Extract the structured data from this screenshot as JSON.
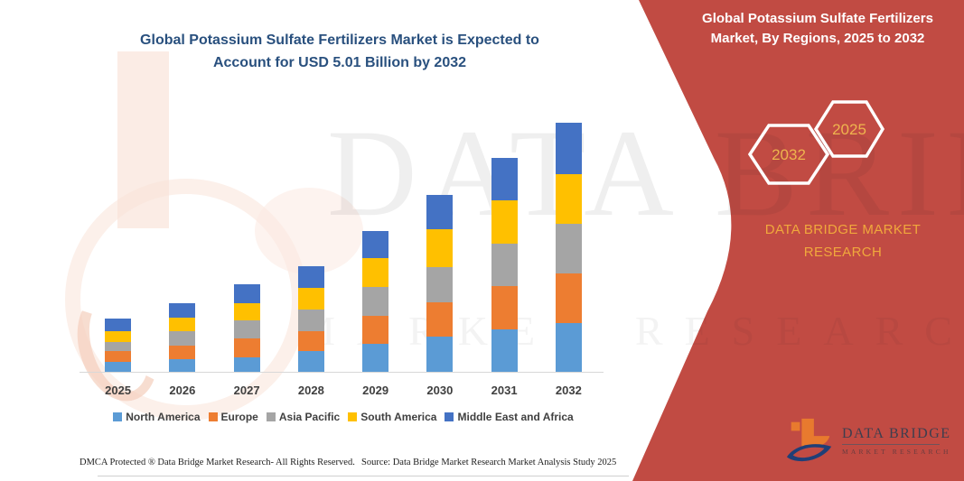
{
  "colors": {
    "panel_red": "#c14b43",
    "title_blue": "#29507e",
    "badge_gold": "#eeb44e",
    "brand_gold": "#f0a83c",
    "axis_gray": "#d8d8d8"
  },
  "header": {
    "left_title_line1": "Global Potassium Sulfate Fertilizers Market is Expected to",
    "left_title_line2": "Account for USD 5.01 Billion by 2032",
    "right_title_line1": "Global Potassium Sulfate Fertilizers",
    "right_title_line2": "Market, By Regions, 2025 to 2032"
  },
  "badges": {
    "back_label": "2032",
    "front_label": "2025"
  },
  "brand_text": "DATA BRIDGE MARKET RESEARCH",
  "watermark": {
    "line1": "DATA BRIDGE",
    "line2": "MARKET RESEARCH"
  },
  "chart_data": {
    "type": "bar",
    "stacked": true,
    "title": "Global Potassium Sulfate Fertilizers Market is Expected to Account for USD 5.01 Billion by 2032",
    "unit": "USD Billion",
    "categories": [
      "2025",
      "2026",
      "2027",
      "2028",
      "2029",
      "2030",
      "2031",
      "2032"
    ],
    "series": [
      {
        "name": "North America",
        "color": "#5B9BD5",
        "values": [
          0.2,
          0.25,
          0.3,
          0.42,
          0.56,
          0.71,
          0.86,
          0.99
        ]
      },
      {
        "name": "Europe",
        "color": "#ED7D31",
        "values": [
          0.22,
          0.28,
          0.38,
          0.4,
          0.57,
          0.69,
          0.86,
          0.99
        ]
      },
      {
        "name": "Asia Pacific",
        "color": "#A5A5A5",
        "values": [
          0.18,
          0.29,
          0.36,
          0.43,
          0.58,
          0.71,
          0.86,
          1.01
        ]
      },
      {
        "name": "South America",
        "color": "#FFC000",
        "values": [
          0.22,
          0.27,
          0.35,
          0.45,
          0.58,
          0.76,
          0.87,
          1.0
        ]
      },
      {
        "name": "Middle East and Africa",
        "color": "#4472C4",
        "values": [
          0.25,
          0.29,
          0.38,
          0.42,
          0.55,
          0.7,
          0.86,
          1.02
        ]
      }
    ],
    "totals_estimated": [
      1.07,
      1.38,
      1.77,
      2.12,
      2.84,
      3.57,
      4.31,
      5.01
    ],
    "ylim": [
      0,
      5.2
    ],
    "y_axis_visible": false,
    "grid": false,
    "legend_position": "bottom",
    "annotation": "2032 total = USD 5.01 Billion (stated in title)"
  },
  "footer": {
    "dmca": "DMCA Protected ® Data Bridge Market Research- All Rights Reserved.",
    "source": "Source: Data Bridge Market Research Market Analysis Study 2025"
  },
  "logo": {
    "title": "DATA BRIDGE",
    "subtitle": "MARKET RESEARCH"
  }
}
